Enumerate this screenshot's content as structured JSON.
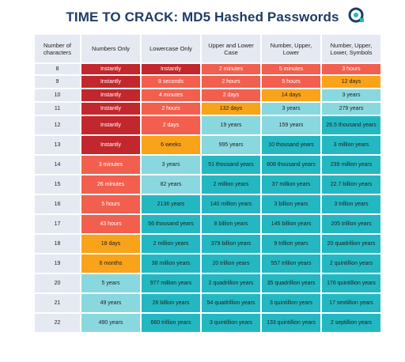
{
  "title": "TIME TO CRACK: MD5 Hashed Passwords",
  "logo": "o-logo-icon",
  "colors": {
    "darkred": "#c2272d",
    "salmon": "#f25f4f",
    "orange": "#f9a31a",
    "teal": "#23b8c1",
    "lightteal": "#8ad8df",
    "header": "#e5e9f1",
    "title": "#1e3c66"
  },
  "headers": [
    "Number of characters",
    "Numbers Only",
    "Lowercase Only",
    "Upper and Lower Case",
    "Number, Upper, Lower",
    "Number, Upper, Lower, Symbols"
  ],
  "rows": [
    {
      "n": "8",
      "cells": [
        [
          "Instantly",
          "darkred"
        ],
        [
          "Instantly",
          "darkred"
        ],
        [
          "2 minutes",
          "salmon"
        ],
        [
          "5 minutes",
          "salmon"
        ],
        [
          "3 hours",
          "salmon"
        ]
      ]
    },
    {
      "n": "9",
      "cells": [
        [
          "Instantly",
          "darkred"
        ],
        [
          "9 seconds",
          "salmon"
        ],
        [
          "2 hours",
          "salmon"
        ],
        [
          "5 hours",
          "salmon"
        ],
        [
          "12 days",
          "orange"
        ]
      ]
    },
    {
      "n": "10",
      "cells": [
        [
          "Instantly",
          "darkred"
        ],
        [
          "4 minutes",
          "salmon"
        ],
        [
          "2 days",
          "salmon"
        ],
        [
          "14 days",
          "orange"
        ],
        [
          "3 years",
          "lightteal"
        ]
      ]
    },
    {
      "n": "11",
      "cells": [
        [
          "Instantly",
          "darkred"
        ],
        [
          "2 hours",
          "salmon"
        ],
        [
          "132 days",
          "orange"
        ],
        [
          "3 years",
          "lightteal"
        ],
        [
          "279 years",
          "lightteal"
        ]
      ]
    },
    {
      "n": "12",
      "cells": [
        [
          "Instantly",
          "darkred"
        ],
        [
          "2 days",
          "salmon"
        ],
        [
          "19 years",
          "lightteal"
        ],
        [
          "159 years",
          "lightteal"
        ],
        [
          "26.5 thousand years",
          "teal"
        ]
      ]
    },
    {
      "n": "13",
      "cells": [
        [
          "Instantly",
          "darkred"
        ],
        [
          "6 weeks",
          "orange"
        ],
        [
          "995 years",
          "lightteal"
        ],
        [
          "10 thousand years",
          "teal"
        ],
        [
          "3 million years",
          "teal"
        ]
      ]
    },
    {
      "n": "14",
      "cells": [
        [
          "3 minutes",
          "salmon"
        ],
        [
          "3 years",
          "lightteal"
        ],
        [
          "51 thousand years",
          "teal"
        ],
        [
          "608 thousand years",
          "teal"
        ],
        [
          "239 million years",
          "teal"
        ]
      ]
    },
    {
      "n": "15",
      "cells": [
        [
          "26 minutes",
          "salmon"
        ],
        [
          "82 years",
          "lightteal"
        ],
        [
          "2 million years",
          "teal"
        ],
        [
          "37 million years",
          "teal"
        ],
        [
          "22.7 billion years",
          "teal"
        ]
      ]
    },
    {
      "n": "16",
      "cells": [
        [
          "5 hours",
          "salmon"
        ],
        [
          "2136 years",
          "teal"
        ],
        [
          "140 million years",
          "teal"
        ],
        [
          "3 billion years",
          "teal"
        ],
        [
          "3 trillion years",
          "teal"
        ]
      ]
    },
    {
      "n": "17",
      "cells": [
        [
          "43 hours",
          "salmon"
        ],
        [
          "56 thousand years",
          "teal"
        ],
        [
          "8 billion years",
          "teal"
        ],
        [
          "145  billion years",
          "teal"
        ],
        [
          "205 trillion years",
          "teal"
        ]
      ]
    },
    {
      "n": "18",
      "cells": [
        [
          "18 days",
          "orange"
        ],
        [
          "2 million years",
          "teal"
        ],
        [
          "379 billion years",
          "teal"
        ],
        [
          "9 trillion years",
          "teal"
        ],
        [
          "20 quadrillion years",
          "teal"
        ]
      ]
    },
    {
      "n": "19",
      "cells": [
        [
          "6 months",
          "orange"
        ],
        [
          "38 million years",
          "teal"
        ],
        [
          "20 trillion years",
          "teal"
        ],
        [
          "557 trillion years",
          "teal"
        ],
        [
          "2 quintillion years",
          "teal"
        ]
      ]
    },
    {
      "n": "20",
      "cells": [
        [
          "5 years",
          "lightteal"
        ],
        [
          "977 million years",
          "teal"
        ],
        [
          "2 quadrillion years",
          "teal"
        ],
        [
          "35 quadrillion years",
          "teal"
        ],
        [
          "176 quintillion years",
          "teal"
        ]
      ]
    },
    {
      "n": "21",
      "cells": [
        [
          "49 years",
          "lightteal"
        ],
        [
          "26 billion years",
          "teal"
        ],
        [
          "54 quadrillion years",
          "teal"
        ],
        [
          "3 quintillion years",
          "teal"
        ],
        [
          "17 sextillion years",
          "teal"
        ]
      ]
    },
    {
      "n": "22",
      "cells": [
        [
          "490 years",
          "lightteal"
        ],
        [
          "660 trillion years",
          "teal"
        ],
        [
          "3 quintillion years",
          "teal"
        ],
        [
          "133 quintillion years",
          "teal"
        ],
        [
          "2 septillion years",
          "teal"
        ]
      ]
    }
  ]
}
